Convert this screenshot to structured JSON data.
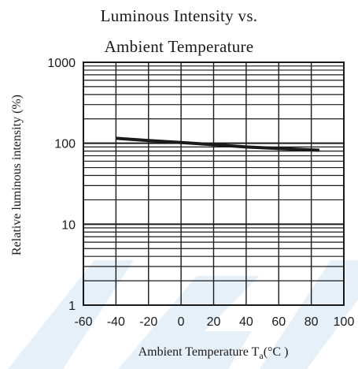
{
  "chart_data": {
    "type": "line",
    "title": [
      "Luminous Intensity vs.",
      "Ambient Temperature"
    ],
    "xlabel": "Ambient Temperature T",
    "xlabel_sub": "a",
    "xlabel_unit": "(°C )",
    "ylabel": "Relative luminous intensity  (%)",
    "yscale": "log",
    "xlim": [
      -60,
      100
    ],
    "ylim": [
      1,
      1000
    ],
    "xticks": [
      -60,
      -40,
      -20,
      0,
      20,
      40,
      60,
      80,
      100
    ],
    "xtick_labels": [
      "-60",
      "-40",
      "-20",
      "0",
      "20",
      "40",
      "60",
      "80",
      "100"
    ],
    "yticks": [
      1,
      10,
      100,
      1000
    ],
    "ytick_labels": [
      "1",
      "10",
      "100",
      "1000"
    ],
    "grid": true,
    "series": [
      {
        "x": [
          -40,
          -20,
          0,
          20,
          40,
          60,
          85
        ],
        "y": [
          115,
          108,
          102,
          96,
          90,
          86,
          82
        ]
      }
    ],
    "colors": {
      "line": "#1a1a1a",
      "grid": "#1a1a1a",
      "text": "#1a1a1a",
      "watermark": "#e3eef7"
    }
  }
}
